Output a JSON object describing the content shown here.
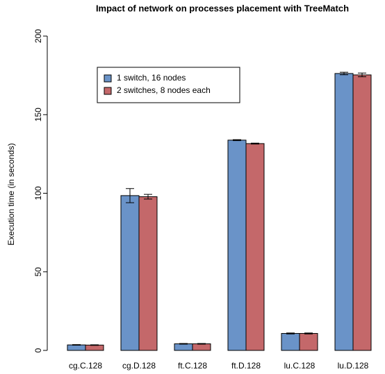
{
  "chart_data": {
    "type": "bar",
    "title": "Impact of network on processes placement with TreeMatch",
    "y_label": "Execution time (in seconds)",
    "categories": [
      "cg.C.128",
      "cg.D.128",
      "ft.C.128",
      "ft.D.128",
      "lu.C.128",
      "lu.D.128"
    ],
    "series": [
      {
        "name": "1 switch, 16 nodes",
        "color": "#6a93c8",
        "values": [
          3.5,
          98.5,
          4.2,
          133.8,
          10.8,
          176.2
        ],
        "errors": [
          0.2,
          4.5,
          0.2,
          0.3,
          0.3,
          0.8
        ]
      },
      {
        "name": "2 switches, 8 nodes each",
        "color": "#c4686a",
        "values": [
          3.4,
          97.8,
          4.2,
          131.6,
          10.8,
          175.3
        ],
        "errors": [
          0.2,
          1.5,
          0.2,
          0.3,
          0.3,
          1.2
        ]
      }
    ],
    "ylim": [
      0,
      200
    ],
    "yticks": [
      0,
      50,
      100,
      150,
      200
    ],
    "legend": "top-left"
  }
}
